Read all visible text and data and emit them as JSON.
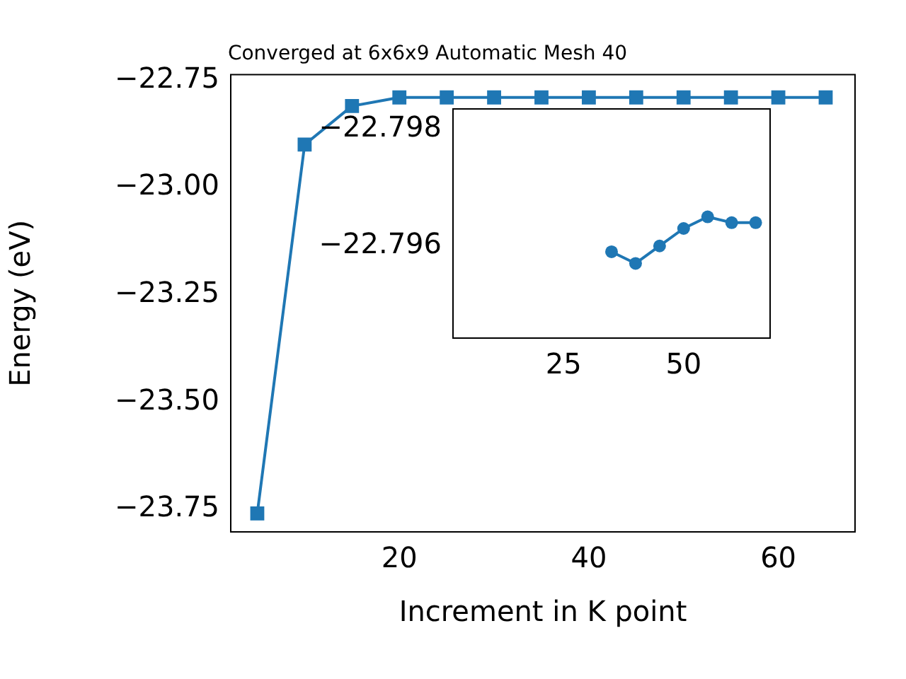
{
  "chart_data": [
    {
      "type": "line",
      "title": "Converged at 6x6x9 Automatic Mesh 40",
      "xlabel": "Increment in K point",
      "ylabel": "Energy (eV)",
      "x": [
        5,
        10,
        15,
        20,
        25,
        30,
        35,
        40,
        45,
        50,
        55,
        60,
        65
      ],
      "series": [
        {
          "color": "#1f77b4",
          "values": [
            -23.76,
            -22.9,
            -22.81,
            -22.79,
            -22.79,
            -22.79,
            -22.79,
            -22.79,
            -22.79,
            -22.79,
            -22.79,
            -22.79,
            -22.79
          ]
        }
      ],
      "xlim": [
        2.2,
        68.1
      ],
      "ylim": [
        -23.803,
        -22.737
      ],
      "xticks": [
        20,
        40,
        60
      ],
      "yticks": [
        {
          "value": -22.75,
          "label": "−22.75"
        },
        {
          "value": -23.0,
          "label": "−23.00"
        },
        {
          "value": -23.25,
          "label": "−23.25"
        },
        {
          "value": -23.5,
          "label": "−23.50"
        },
        {
          "value": -23.75,
          "label": "−23.75"
        }
      ],
      "marker": "square",
      "grid": false,
      "legend": false
    },
    {
      "type": "line",
      "x": [
        35,
        40,
        45,
        50,
        55,
        60,
        65
      ],
      "series": [
        {
          "color": "#1f77b4",
          "values": [
            -22.7959,
            -22.7957,
            -22.796,
            -22.7963,
            -22.7965,
            -22.7964,
            -22.7964
          ]
        }
      ],
      "xlim": [
        2,
        68
      ],
      "ylim": [
        -22.79442,
        -22.79835
      ],
      "xticks": [
        25,
        50
      ],
      "yticks": [
        {
          "value": -22.798,
          "label": "−22.798"
        },
        {
          "value": -22.796,
          "label": "−22.796"
        }
      ],
      "marker": "circle",
      "grid": false,
      "legend": false
    }
  ]
}
